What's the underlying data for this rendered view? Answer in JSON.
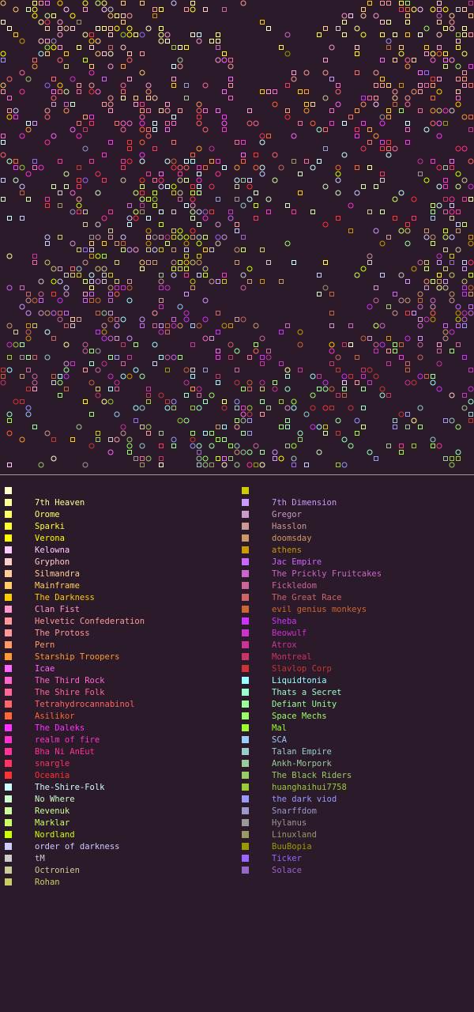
{
  "map": {
    "marker_types": [
      "square-icon",
      "circle-icon"
    ]
  },
  "legend": {
    "left": [
      {
        "label": "",
        "color": "#fffecc"
      },
      {
        "label": "7th Heaven",
        "color": "#ffff99"
      },
      {
        "label": "Orome",
        "color": "#ffff66"
      },
      {
        "label": "Sparki",
        "color": "#ffff33"
      },
      {
        "label": "Verona",
        "color": "#ffff00"
      },
      {
        "label": "Kelowna",
        "color": "#ffccff"
      },
      {
        "label": "Gryphon",
        "color": "#ffcccc"
      },
      {
        "label": "Silmandra",
        "color": "#ffcc99"
      },
      {
        "label": "Mainframe",
        "color": "#ffcc66"
      },
      {
        "label": "The Darkness",
        "color": "#ffcc00"
      },
      {
        "label": "Clan Fist",
        "color": "#ff99cc"
      },
      {
        "label": "Helvetic Confederation",
        "color": "#ff9999"
      },
      {
        "label": "The Protoss",
        "color": "#ff9999"
      },
      {
        "label": "Pern",
        "color": "#ff9966"
      },
      {
        "label": "Starship Troopers",
        "color": "#ff9933"
      },
      {
        "label": "Icae",
        "color": "#ff66ff"
      },
      {
        "label": "The Third Rock",
        "color": "#ff66cc"
      },
      {
        "label": "The Shire Folk",
        "color": "#ff6699"
      },
      {
        "label": "Tetrahydrocannabinol",
        "color": "#ff6666"
      },
      {
        "label": "Asilikor",
        "color": "#ff6633"
      },
      {
        "label": "The Daleks",
        "color": "#ff33ff"
      },
      {
        "label": "realm of fire",
        "color": "#ff33cc"
      },
      {
        "label": "Bha Ni AnEut",
        "color": "#ff3399"
      },
      {
        "label": "snargle",
        "color": "#ff3366"
      },
      {
        "label": "Oceania",
        "color": "#ff3333"
      },
      {
        "label": "The-Shire-Folk",
        "color": "#ccffff"
      },
      {
        "label": "No Where",
        "color": "#ccffcc"
      },
      {
        "label": "Revenuk",
        "color": "#ccff99"
      },
      {
        "label": "Marklar",
        "color": "#ccff66"
      },
      {
        "label": "Nordland",
        "color": "#ccff00"
      },
      {
        "label": "order of darkness",
        "color": "#ccccff"
      },
      {
        "label": "tM",
        "color": "#cccccc"
      },
      {
        "label": "Octronien",
        "color": "#cccc99"
      },
      {
        "label": "Rohan",
        "color": "#cccc66"
      }
    ],
    "right": [
      {
        "label": "",
        "color": "#cccc00"
      },
      {
        "label": "7th Dimension",
        "color": "#cc99ff"
      },
      {
        "label": "Gregor",
        "color": "#cc99cc"
      },
      {
        "label": "Hasslon",
        "color": "#cc9999"
      },
      {
        "label": "doomsday",
        "color": "#cc9966"
      },
      {
        "label": "athens",
        "color": "#cc9900"
      },
      {
        "label": "Jac Empire",
        "color": "#cc66ff"
      },
      {
        "label": "The Prickly Fruitcakes",
        "color": "#cc66cc"
      },
      {
        "label": "Fickledom",
        "color": "#cc6699"
      },
      {
        "label": "The Great Race",
        "color": "#cc6666"
      },
      {
        "label": "evil genius monkeys",
        "color": "#cc6633"
      },
      {
        "label": "Sheba",
        "color": "#cc33ff"
      },
      {
        "label": "Beowulf",
        "color": "#cc33cc"
      },
      {
        "label": "Atrox",
        "color": "#cc3399"
      },
      {
        "label": "Montreal",
        "color": "#cc3366"
      },
      {
        "label": "Slavlop Corp",
        "color": "#cc3333"
      },
      {
        "label": "Liquidtonia",
        "color": "#99ffff"
      },
      {
        "label": "Thats a Secret",
        "color": "#99ffcc"
      },
      {
        "label": "Defiant Unity",
        "color": "#99ff99"
      },
      {
        "label": "Space Mechs",
        "color": "#99ff66"
      },
      {
        "label": "Mal",
        "color": "#99ff33"
      },
      {
        "label": "SCA",
        "color": "#99ccff"
      },
      {
        "label": "Talan Empire",
        "color": "#99cccc"
      },
      {
        "label": "Ankh-Morpork",
        "color": "#99cc99"
      },
      {
        "label": "The Black Riders",
        "color": "#99cc66"
      },
      {
        "label": "huanghaihui7758",
        "color": "#99cc33"
      },
      {
        "label": "the dark viod",
        "color": "#9999ff"
      },
      {
        "label": "Snarffdom",
        "color": "#9999cc"
      },
      {
        "label": "Hylanus",
        "color": "#999999"
      },
      {
        "label": "Linuxland",
        "color": "#999966"
      },
      {
        "label": "BuuBopia",
        "color": "#999900"
      },
      {
        "label": "Ticker",
        "color": "#9966ff"
      },
      {
        "label": "Solace",
        "color": "#9966cc"
      }
    ]
  }
}
